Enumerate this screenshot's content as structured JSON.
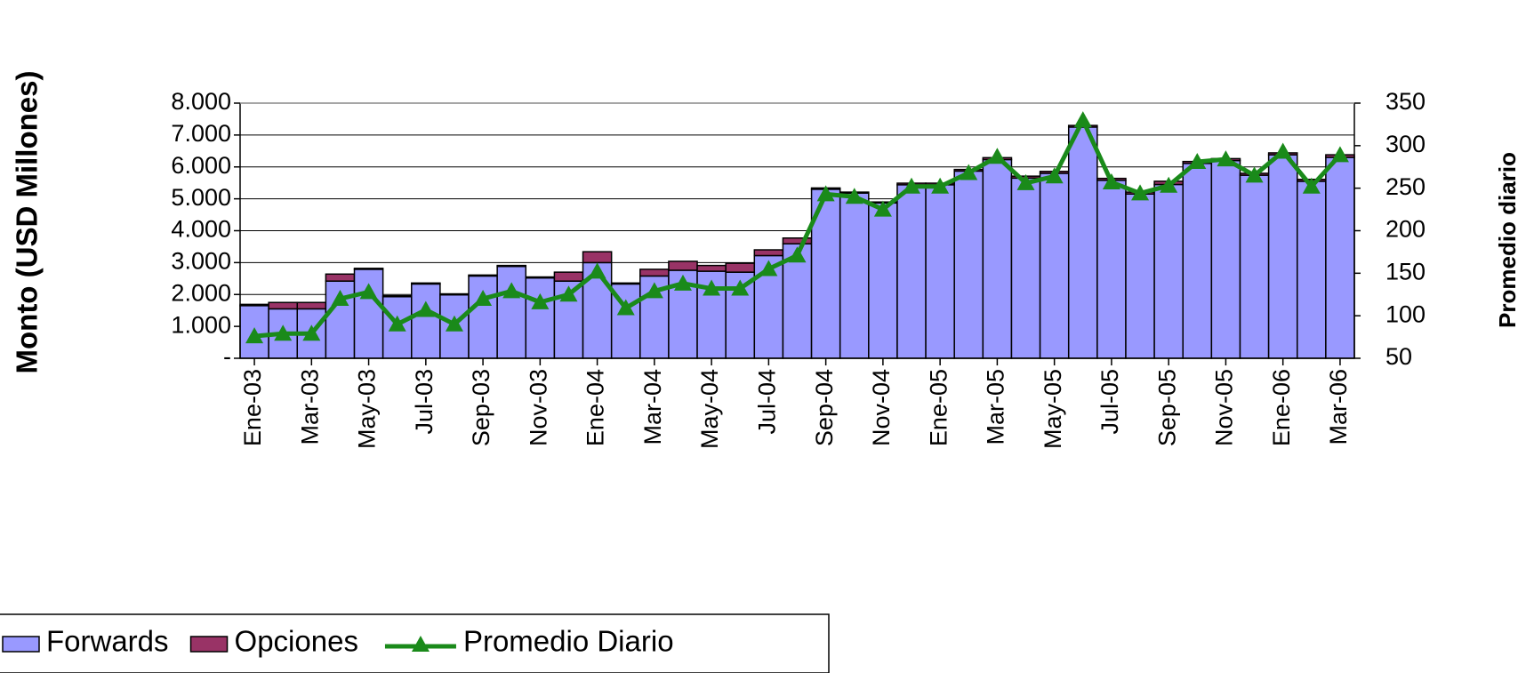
{
  "chart_data": {
    "type": "bar",
    "y_title": "Monto (USD Millones)",
    "y2_title": "Promedio diario",
    "categories": [
      "Ene-03",
      null,
      "Mar-03",
      null,
      "May-03",
      null,
      "Jul-03",
      null,
      "Sep-03",
      null,
      "Nov-03",
      null,
      "Ene-04",
      null,
      "Mar-04",
      null,
      "May-04",
      null,
      "Jul-04",
      null,
      "Sep-04",
      null,
      "Nov-04",
      null,
      "Ene-05",
      null,
      "Mar-05",
      null,
      "May-05",
      null,
      "Jul-05",
      null,
      "Sep-05",
      null,
      "Nov-05",
      null,
      "Ene-06",
      null,
      "Mar-06"
    ],
    "stacked": true,
    "series": [
      {
        "name": "Forwards",
        "color": "#9999ff",
        "values": [
          1650,
          1550,
          1550,
          2420,
          2790,
          1930,
          2330,
          1990,
          2580,
          2880,
          2520,
          2420,
          3000,
          2330,
          2580,
          2760,
          2730,
          2700,
          3220,
          3590,
          5300,
          5180,
          4870,
          5440,
          5440,
          5870,
          6230,
          5650,
          5800,
          7250,
          5580,
          5150,
          5450,
          6110,
          6200,
          5740,
          6380,
          5550,
          6300
        ]
      },
      {
        "name": "Opciones",
        "color": "#993366",
        "values": [
          40,
          200,
          200,
          220,
          30,
          30,
          30,
          30,
          30,
          30,
          30,
          280,
          340,
          30,
          210,
          280,
          180,
          280,
          180,
          180,
          40,
          30,
          30,
          50,
          50,
          50,
          60,
          60,
          60,
          50,
          60,
          60,
          100,
          60,
          60,
          60,
          60,
          60,
          80
        ]
      },
      {
        "name": "Promedio Diario",
        "type": "line",
        "axis": "y2",
        "color": "#1a8a1a",
        "values": [
          76,
          79,
          79,
          120,
          128,
          90,
          107,
          90,
          120,
          129,
          116,
          125,
          152,
          109,
          129,
          138,
          132,
          132,
          155,
          171,
          243,
          240,
          225,
          252,
          252,
          268,
          287,
          256,
          264,
          330,
          257,
          244,
          253,
          281,
          284,
          265,
          293,
          252,
          289
        ]
      }
    ],
    "ylim": [
      0,
      8000
    ],
    "yticks": [
      {
        "value": 0,
        "label": "-"
      },
      {
        "value": 1000,
        "label": "1.000"
      },
      {
        "value": 2000,
        "label": "2.000"
      },
      {
        "value": 3000,
        "label": "3.000"
      },
      {
        "value": 4000,
        "label": "4.000"
      },
      {
        "value": 5000,
        "label": "5.000"
      },
      {
        "value": 6000,
        "label": "6.000"
      },
      {
        "value": 7000,
        "label": "7.000"
      },
      {
        "value": 8000,
        "label": "8.000"
      }
    ],
    "y2lim": [
      50,
      350
    ],
    "y2ticks": [
      50,
      100,
      150,
      200,
      250,
      300,
      350
    ],
    "grid": true,
    "legend": "bottom-left"
  }
}
